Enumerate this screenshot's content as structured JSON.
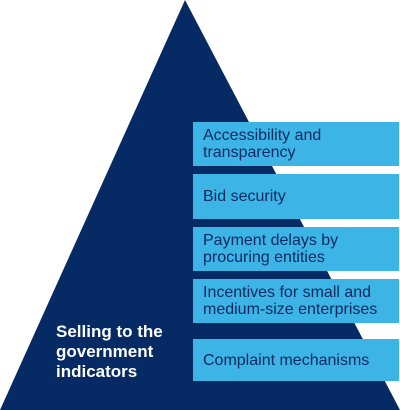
{
  "pyramid": {
    "title": "Selling to the\ngovernment\nindicators",
    "color": "#062a63"
  },
  "boxes": [
    {
      "label": "Accessibility and\ntransparency"
    },
    {
      "label": "Bid security"
    },
    {
      "label": "Payment delays by\nprocuring entities"
    },
    {
      "label": "Incentives for small and\nmedium-size enterprises"
    },
    {
      "label": "Complaint mechanisms"
    }
  ],
  "colors": {
    "box_fill": "#3cb4e6",
    "box_text": "#0b2a63",
    "title_text": "#ffffff"
  }
}
